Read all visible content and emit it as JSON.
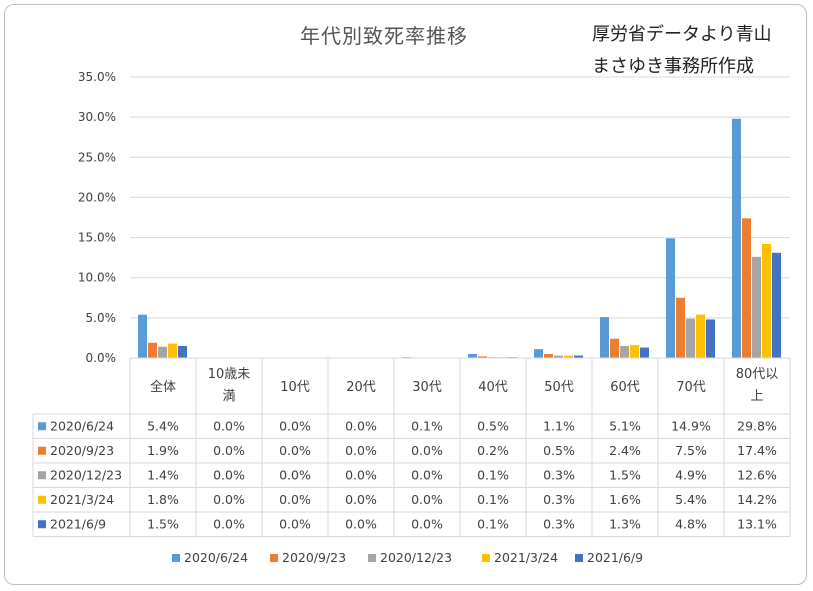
{
  "chart_data": {
    "type": "bar",
    "title": "年代別致死率推移",
    "credit": [
      "厚労省データより青山",
      "まさゆき事務所作成"
    ],
    "categories": [
      "全体",
      "10歳未満",
      "10代",
      "20代",
      "30代",
      "40代",
      "50代",
      "60代",
      "70代",
      "80代以上"
    ],
    "category_lines": [
      [
        "全体"
      ],
      [
        "10歳未",
        "満"
      ],
      [
        "10代"
      ],
      [
        "20代"
      ],
      [
        "30代"
      ],
      [
        "40代"
      ],
      [
        "50代"
      ],
      [
        "60代"
      ],
      [
        "70代"
      ],
      [
        "80代以",
        "上"
      ]
    ],
    "yticks": [
      "0.0%",
      "5.0%",
      "10.0%",
      "15.0%",
      "20.0%",
      "25.0%",
      "30.0%",
      "35.0%"
    ],
    "ylim": [
      0,
      35
    ],
    "grid": true,
    "legend_position": "bottom",
    "series": [
      {
        "name": "2020/6/24",
        "color": "#5b9bd5",
        "values": [
          5.4,
          0.0,
          0.0,
          0.0,
          0.1,
          0.5,
          1.1,
          5.1,
          14.9,
          29.8
        ],
        "labels": [
          "5.4%",
          "0.0%",
          "0.0%",
          "0.0%",
          "0.1%",
          "0.5%",
          "1.1%",
          "5.1%",
          "14.9%",
          "29.8%"
        ]
      },
      {
        "name": "2020/9/23",
        "color": "#ed7d31",
        "values": [
          1.9,
          0.0,
          0.0,
          0.0,
          0.0,
          0.2,
          0.5,
          2.4,
          7.5,
          17.4
        ],
        "labels": [
          "1.9%",
          "0.0%",
          "0.0%",
          "0.0%",
          "0.0%",
          "0.2%",
          "0.5%",
          "2.4%",
          "7.5%",
          "17.4%"
        ]
      },
      {
        "name": "2020/12/23",
        "color": "#a5a5a5",
        "values": [
          1.4,
          0.0,
          0.0,
          0.0,
          0.0,
          0.1,
          0.3,
          1.5,
          4.9,
          12.6
        ],
        "labels": [
          "1.4%",
          "0.0%",
          "0.0%",
          "0.0%",
          "0.0%",
          "0.1%",
          "0.3%",
          "1.5%",
          "4.9%",
          "12.6%"
        ]
      },
      {
        "name": "2021/3/24",
        "color": "#ffc000",
        "values": [
          1.8,
          0.0,
          0.0,
          0.0,
          0.0,
          0.1,
          0.3,
          1.6,
          5.4,
          14.2
        ],
        "labels": [
          "1.8%",
          "0.0%",
          "0.0%",
          "0.0%",
          "0.0%",
          "0.1%",
          "0.3%",
          "1.6%",
          "5.4%",
          "14.2%"
        ]
      },
      {
        "name": "2021/6/9",
        "color": "#4472c4",
        "values": [
          1.5,
          0.0,
          0.0,
          0.0,
          0.0,
          0.1,
          0.3,
          1.3,
          4.8,
          13.1
        ],
        "labels": [
          "1.5%",
          "0.0%",
          "0.0%",
          "0.0%",
          "0.0%",
          "0.1%",
          "0.3%",
          "1.3%",
          "4.8%",
          "13.1%"
        ]
      }
    ]
  }
}
